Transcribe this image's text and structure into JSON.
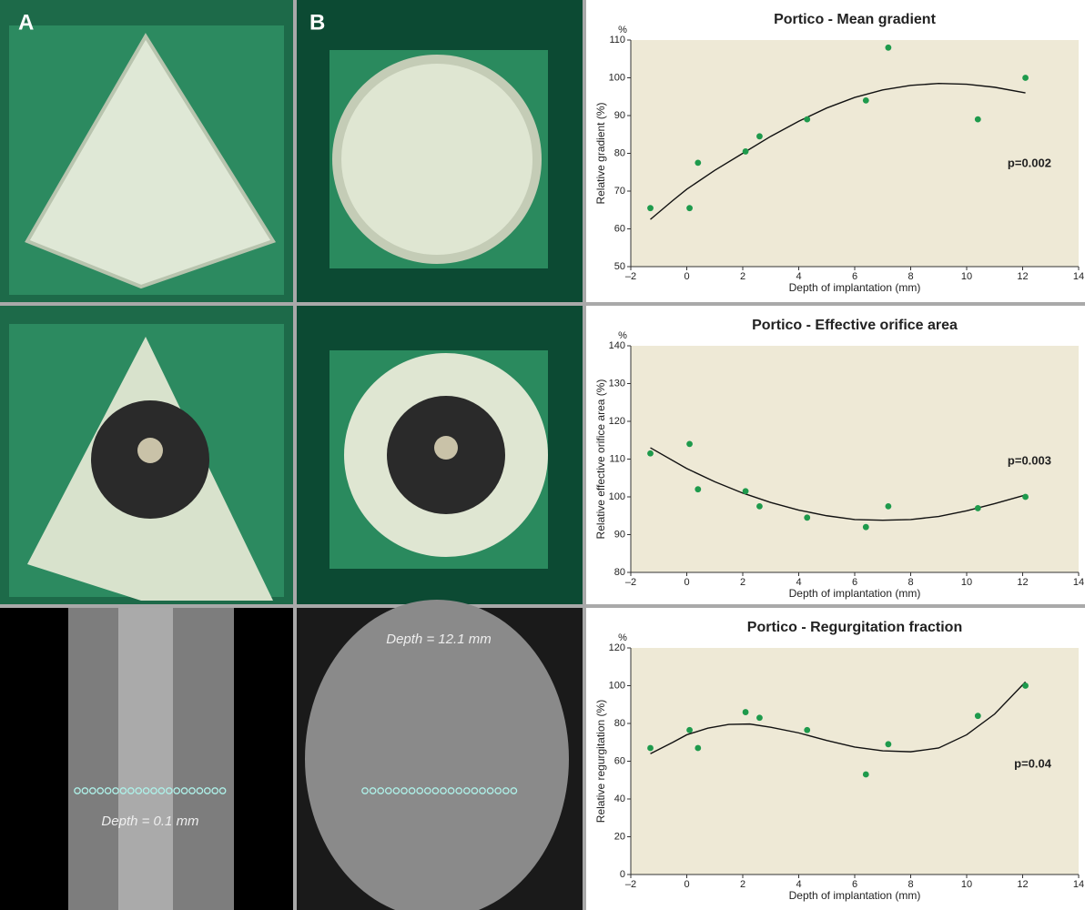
{
  "panels": {
    "a_label": "A",
    "b_label": "B",
    "depth_a": "Depth = 0.1 mm",
    "depth_b": "Depth = 12.1 mm"
  },
  "chart_data": [
    {
      "type": "scatter",
      "title": "Portico - Mean gradient",
      "y_unit": "%",
      "x_label": "Depth of implantation (mm)",
      "y_label": "Relative gradient (%)",
      "annotation": "p=0.002",
      "xlim": [
        -2,
        14
      ],
      "xticks": [
        {
          "value": -2,
          "label": "–2"
        },
        0,
        2,
        4,
        6,
        8,
        10,
        12,
        14
      ],
      "ylim": [
        50,
        110
      ],
      "yticks": [
        50,
        60,
        70,
        80,
        90,
        100,
        110
      ],
      "points": {
        "color": "#1e9a4c",
        "x": [
          -1.3,
          0.1,
          0.4,
          2.1,
          2.6,
          4.3,
          6.4,
          7.2,
          10.4,
          12.1
        ],
        "values": [
          65.5,
          65.5,
          77.5,
          80.5,
          84.5,
          89,
          94,
          108,
          89,
          100
        ]
      },
      "fit": {
        "color": "#111111",
        "x": [
          -1.3,
          -0.5,
          0,
          1,
          2,
          3,
          4,
          5,
          6,
          7,
          8,
          9,
          10,
          11,
          12.1
        ],
        "values": [
          62.5,
          67.5,
          70.5,
          75.5,
          80,
          84.5,
          88.5,
          92,
          94.8,
          96.8,
          98,
          98.5,
          98.3,
          97.5,
          96
        ]
      }
    },
    {
      "type": "scatter",
      "title": "Portico - Effective orifice area",
      "y_unit": "%",
      "x_label": "Depth of implantation (mm)",
      "y_label": "Relative effective orifice area (%)",
      "annotation": "p=0.003",
      "xlim": [
        -2,
        14
      ],
      "xticks": [
        {
          "value": -2,
          "label": "–2"
        },
        0,
        2,
        4,
        6,
        8,
        10,
        12,
        14
      ],
      "ylim": [
        80,
        140
      ],
      "yticks": [
        80,
        90,
        100,
        110,
        120,
        130,
        140
      ],
      "points": {
        "color": "#1e9a4c",
        "x": [
          -1.3,
          0.1,
          0.4,
          2.1,
          2.6,
          4.3,
          6.4,
          7.2,
          10.4,
          12.1
        ],
        "values": [
          111.5,
          114,
          102,
          101.5,
          97.5,
          94.5,
          92,
          97.5,
          97,
          100
        ]
      },
      "fit": {
        "color": "#111111",
        "x": [
          -1.3,
          0,
          1,
          2,
          3,
          4,
          5,
          6,
          7,
          8,
          9,
          10,
          11,
          12.1
        ],
        "values": [
          113,
          107.5,
          104,
          101,
          98.5,
          96.5,
          95,
          94,
          93.8,
          94,
          94.8,
          96.3,
          98.2,
          100.5
        ]
      }
    },
    {
      "type": "scatter",
      "title": "Portico - Regurgitation fraction",
      "y_unit": "%",
      "x_label": "Depth of implantation (mm)",
      "y_label": "Relative regurgitation (%)",
      "annotation": "p=0.04",
      "xlim": [
        -2,
        14
      ],
      "xticks": [
        {
          "value": -2,
          "label": "–2"
        },
        0,
        2,
        4,
        6,
        8,
        10,
        12,
        14
      ],
      "ylim": [
        0,
        120
      ],
      "yticks": [
        0,
        20,
        40,
        60,
        80,
        100,
        120
      ],
      "points": {
        "color": "#1e9a4c",
        "x": [
          -1.3,
          0.1,
          0.4,
          2.1,
          2.6,
          4.3,
          6.4,
          7.2,
          10.4,
          12.1
        ],
        "values": [
          67,
          76.5,
          67,
          86,
          83,
          76.5,
          53,
          69,
          84,
          100
        ]
      },
      "fit": {
        "color": "#111111",
        "x": [
          -1.3,
          -0.5,
          0,
          0.75,
          1.5,
          2.25,
          3,
          4,
          5,
          6,
          7,
          8,
          9,
          10,
          11,
          12.1
        ],
        "values": [
          64,
          70,
          74,
          77.5,
          79.5,
          79.7,
          78,
          75,
          71,
          67.5,
          65.5,
          65,
          67,
          74,
          85,
          102
        ]
      }
    }
  ]
}
